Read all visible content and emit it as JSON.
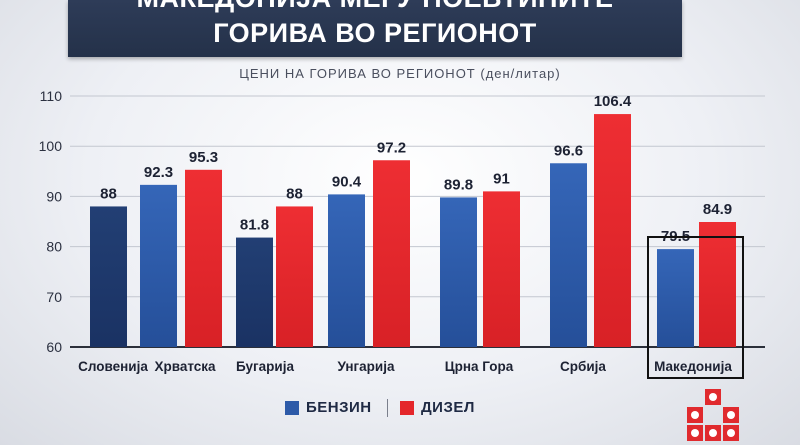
{
  "header": {
    "title_line1": "МАКЕДОНИЈА МЕЃУ ПОЕВТИНИТЕ",
    "title_line2": "ГОРИВА ВО РЕГИОНОТ"
  },
  "chart_data": {
    "type": "bar",
    "title": "ЦЕНИ НА ГОРИВА ВО РЕГИОНОТ (ден/литар)",
    "categories": [
      "Словенија",
      "Хрватска",
      "Бугарија",
      "Унгарија",
      "Црна Гора",
      "Србија",
      "Македонија"
    ],
    "series": [
      {
        "name": "БЕНЗИН",
        "color": "#2d5aa8",
        "values": [
          88,
          92.3,
          81.8,
          90.4,
          89.8,
          96.6,
          79.5
        ]
      },
      {
        "name": "ДИЗЕЛ",
        "color": "#e4262b",
        "values": [
          null,
          95.3,
          88,
          97.2,
          91,
          106.4,
          84.9
        ]
      }
    ],
    "ylim": [
      60,
      110
    ],
    "yticks": [
      60,
      70,
      80,
      90,
      100,
      110
    ],
    "highlight_category": "Македонија",
    "grid": true,
    "legend_position": "bottom-center"
  },
  "colors": {
    "benzin": "#2d5aa8",
    "benzin_dark": "#1c3a6e",
    "dizel": "#e4262b",
    "banner": "#2a3752"
  },
  "logo": {
    "icon": "brand-logo-icon"
  }
}
